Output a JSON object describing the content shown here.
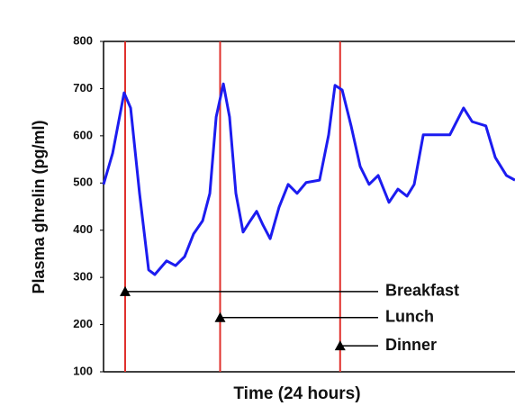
{
  "chart_data": {
    "type": "line",
    "x_label": "Time (24 hours)",
    "y_label": "Plasma ghrelin (pg/ml)",
    "x": [
      0,
      0.53,
      1.2,
      1.58,
      2.1,
      2.63,
      2.99,
      3.68,
      4.2,
      4.73,
      5.25,
      5.78,
      6.2,
      6.57,
      6.99,
      7.35,
      7.72,
      8.14,
      8.56,
      8.93,
      9.3,
      9.72,
      10.24,
      10.77,
      11.29,
      11.82,
      12.6,
      13.13,
      13.5,
      13.92,
      14.44,
      14.97,
      15.49,
      16.02,
      16.65,
      17.17,
      17.7,
      18.12,
      18.65,
      19.43,
      20.2,
      21.0,
      21.5,
      22.3,
      22.85,
      23.5,
      24
    ],
    "values": [
      497,
      563,
      691,
      659,
      478,
      316,
      306,
      335,
      325,
      344,
      392,
      420,
      478,
      640,
      710,
      640,
      478,
      396,
      420,
      440,
      411,
      382,
      449,
      497,
      478,
      501,
      506,
      602,
      707,
      697,
      621,
      535,
      497,
      516,
      459,
      487,
      472,
      497,
      602,
      602,
      602,
      659,
      630,
      621,
      554,
      516,
      506
    ],
    "color": "#1c1cf0",
    "meal_color": "#e0302c",
    "xlim": [
      0,
      24
    ],
    "ylim": [
      100,
      800
    ],
    "yticks": [
      100,
      200,
      300,
      400,
      500,
      600,
      700,
      800
    ],
    "annotations": [
      {
        "label": "Breakfast",
        "x": 1.26,
        "y": 270
      },
      {
        "label": "Lunch",
        "x": 6.8,
        "y": 215
      },
      {
        "label": "Dinner",
        "x": 13.8,
        "y": 155
      }
    ]
  }
}
